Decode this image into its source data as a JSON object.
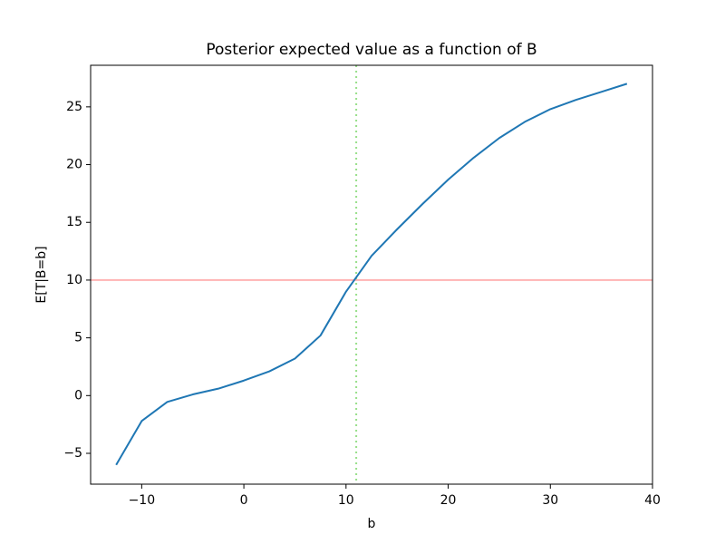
{
  "chart_data": {
    "type": "line",
    "title": "Posterior expected value as a function of B",
    "xlabel": "b",
    "ylabel": "E[T|B=b]",
    "x": [
      -12.5,
      -10,
      -7.5,
      -5,
      -2.5,
      0,
      2.5,
      5,
      7.5,
      10,
      12.5,
      15,
      17.5,
      20,
      22.5,
      25,
      27.5,
      30,
      32.5,
      35,
      37.5
    ],
    "series": [
      {
        "color": "#1f77b4",
        "values": [
          -6,
          -2.2,
          -0.55,
          0.1,
          0.6,
          1.3,
          2.1,
          3.2,
          5.2,
          9.0,
          12.1,
          14.4,
          16.6,
          18.7,
          20.6,
          22.3,
          23.7,
          24.8,
          25.6,
          26.3,
          27.0
        ]
      }
    ],
    "hline": {
      "value": 10,
      "color": "#ffb3b3"
    },
    "vline": {
      "value": 11,
      "color": "#98df8a"
    },
    "xlim": [
      -15,
      40
    ],
    "xticks": [
      {
        "value": -10,
        "label": "−10"
      },
      0,
      10,
      20,
      30,
      40
    ],
    "ylim": [
      -7.67,
      28.6
    ],
    "yticks": [
      {
        "value": -5,
        "label": "−5"
      },
      0,
      5,
      10,
      15,
      20,
      25
    ]
  }
}
